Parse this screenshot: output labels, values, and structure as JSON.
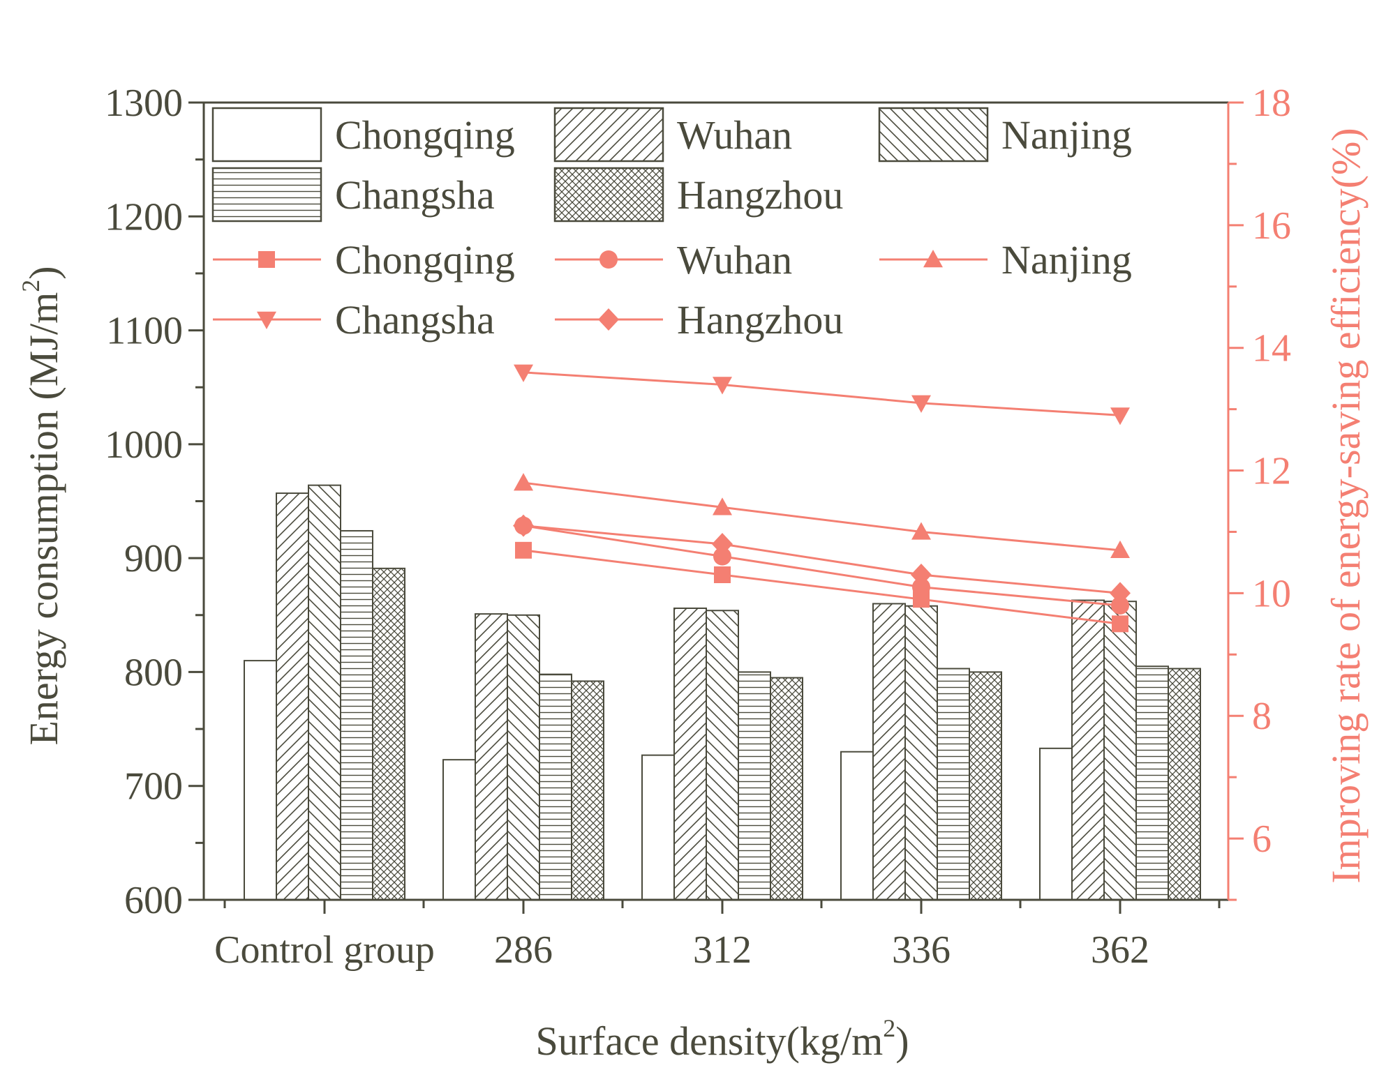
{
  "colors": {
    "axis": "#4a4a3c",
    "accent": "#f47f72",
    "bar_fill": "#ffffff"
  },
  "chart_data": {
    "type": "bar",
    "categories": [
      "Control group",
      "286",
      "312",
      "336",
      "362"
    ],
    "xlabel_main": "Surface density(kg/m",
    "xlabel_sup": "2",
    "xlabel_tail": ")",
    "ylabel_main": "Energy consumption (MJ/m",
    "ylabel_sup": "2",
    "ylabel_tail": ")",
    "y2label": "Improving rate of energy-saving efficiency(%)",
    "ylim": [
      600,
      1300
    ],
    "yticks": [
      "600",
      "700",
      "800",
      "900",
      "1000",
      "1100",
      "1200",
      "1300"
    ],
    "y2lim": [
      5,
      18
    ],
    "y2ticks": [
      "6",
      "8",
      "10",
      "12",
      "14",
      "16",
      "18"
    ],
    "series": [
      {
        "name": "Chongqing",
        "pattern": "blank",
        "values": [
          810,
          723,
          727,
          730,
          733
        ]
      },
      {
        "name": "Wuhan",
        "pattern": "diag-right",
        "values": [
          957,
          851,
          856,
          860,
          863
        ]
      },
      {
        "name": "Nanjing",
        "pattern": "diag-left",
        "values": [
          964,
          850,
          854,
          858,
          862
        ]
      },
      {
        "name": "Changsha",
        "pattern": "horizontal",
        "values": [
          924,
          798,
          800,
          803,
          805
        ]
      },
      {
        "name": "Hangzhou",
        "pattern": "crosshatch",
        "values": [
          891,
          792,
          795,
          800,
          803
        ]
      }
    ],
    "line_series": [
      {
        "name": "Chongqing",
        "marker": "square",
        "values": [
          10.7,
          10.3,
          9.9,
          9.5
        ]
      },
      {
        "name": "Wuhan",
        "marker": "circle",
        "values": [
          11.1,
          10.6,
          10.1,
          9.8
        ]
      },
      {
        "name": "Nanjing",
        "marker": "triangle-up",
        "values": [
          11.8,
          11.4,
          11.0,
          10.7
        ]
      },
      {
        "name": "Changsha",
        "marker": "triangle-down",
        "values": [
          13.6,
          13.4,
          13.1,
          12.9
        ]
      },
      {
        "name": "Hangzhou",
        "marker": "diamond",
        "values": [
          11.1,
          10.8,
          10.3,
          10.0
        ]
      }
    ]
  }
}
